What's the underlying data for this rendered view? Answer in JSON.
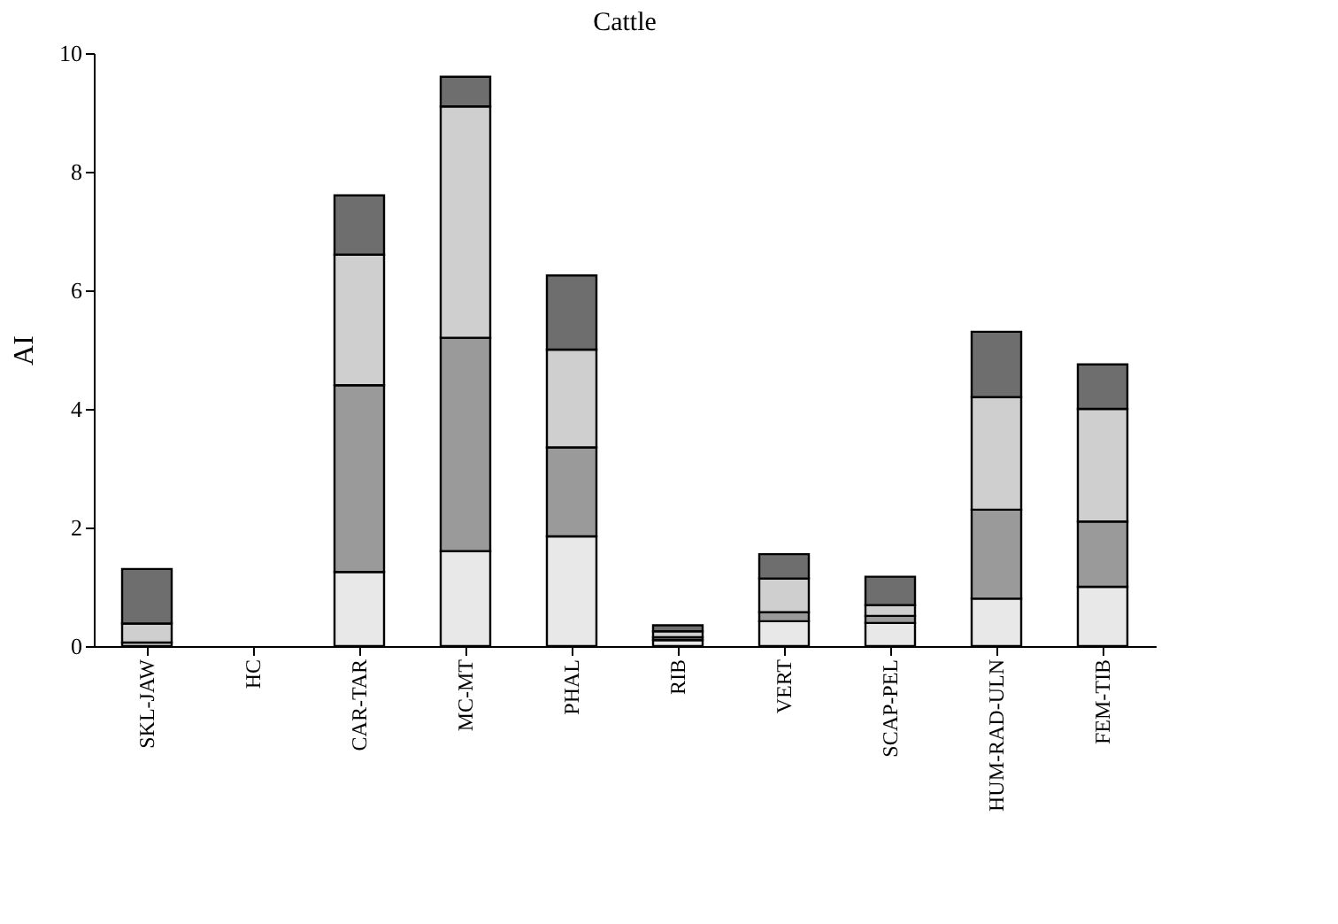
{
  "chart_data": {
    "type": "bar",
    "title": "Cattle",
    "ylabel": "AI",
    "stacked": true,
    "categories": [
      "SKL-JAW",
      "HC",
      "CAR-TAR",
      "MC-MT",
      "PHAL",
      "RIB",
      "VERT",
      "SCAP-PEL",
      "HUM-RAD-ULN",
      "FEM-TIB"
    ],
    "series": [
      {
        "color": "#e8e8e8",
        "values": [
          0.06,
          null,
          1.25,
          1.6,
          1.85,
          0.1,
          0.42,
          0.39,
          0.8,
          1.0
        ]
      },
      {
        "color": "#9a9a9a",
        "values": [
          null,
          null,
          3.15,
          3.6,
          1.5,
          0.05,
          0.15,
          0.12,
          1.5,
          1.1
        ]
      },
      {
        "color": "#cfcfcf",
        "values": [
          0.32,
          null,
          2.2,
          3.9,
          1.65,
          0.1,
          0.57,
          0.18,
          1.9,
          1.9
        ]
      },
      {
        "color": "#6e6e6e",
        "values": [
          0.92,
          null,
          1.0,
          0.5,
          1.25,
          0.1,
          0.41,
          0.48,
          1.1,
          0.75
        ]
      }
    ],
    "ylim": [
      0,
      10
    ],
    "yticks": [
      0,
      2,
      4,
      6,
      8,
      10
    ],
    "grid": false,
    "legend": false
  }
}
